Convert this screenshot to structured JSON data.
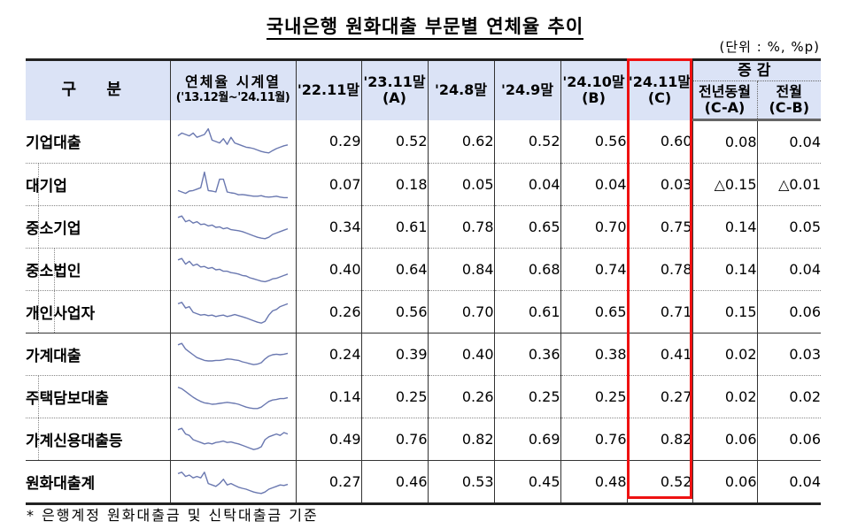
{
  "title": "국내은행 원화대출 부문별 연체율 추이",
  "unit": "(단위 : %, %p)",
  "headers": {
    "category": "구 분",
    "sparkline_main": "연체율 시계열",
    "sparkline_sub": "('13.12월~'24.11월)",
    "columns": [
      {
        "line1": "'22.11말",
        "line2": ""
      },
      {
        "line1": "'23.11말",
        "line2": "(A)"
      },
      {
        "line1": "'24.8말",
        "line2": ""
      },
      {
        "line1": "'24.9말",
        "line2": ""
      },
      {
        "line1": "'24.10말",
        "line2": "(B)"
      },
      {
        "line1": "'24.11말",
        "line2": "(C)"
      }
    ],
    "change_group": "증감",
    "change_cols": [
      {
        "line1": "전년동월",
        "line2": "(C-A)"
      },
      {
        "line1": "전월",
        "line2": "(C-B)"
      }
    ]
  },
  "rows": [
    {
      "label": "기업대출",
      "level": 0,
      "values": [
        "0.29",
        "0.52",
        "0.62",
        "0.52",
        "0.56",
        "0.60"
      ],
      "yoy": "0.08",
      "mom": "0.04"
    },
    {
      "label": "대기업",
      "level": 1,
      "values": [
        "0.07",
        "0.18",
        "0.05",
        "0.04",
        "0.04",
        "0.03"
      ],
      "yoy": "△0.15",
      "mom": "△0.01"
    },
    {
      "label": "중소기업",
      "level": 1,
      "values": [
        "0.34",
        "0.61",
        "0.78",
        "0.65",
        "0.70",
        "0.75"
      ],
      "yoy": "0.14",
      "mom": "0.05"
    },
    {
      "label": "중소법인",
      "level": 2,
      "values": [
        "0.40",
        "0.64",
        "0.84",
        "0.68",
        "0.74",
        "0.78"
      ],
      "yoy": "0.14",
      "mom": "0.04"
    },
    {
      "label": "개인사업자",
      "level": 2,
      "values": [
        "0.26",
        "0.56",
        "0.70",
        "0.61",
        "0.65",
        "0.71"
      ],
      "yoy": "0.15",
      "mom": "0.06"
    },
    {
      "label": "가계대출",
      "level": 0,
      "values": [
        "0.24",
        "0.39",
        "0.40",
        "0.36",
        "0.38",
        "0.41"
      ],
      "yoy": "0.02",
      "mom": "0.03"
    },
    {
      "label": "주택담보대출",
      "level": 1,
      "values": [
        "0.14",
        "0.25",
        "0.26",
        "0.25",
        "0.25",
        "0.27"
      ],
      "yoy": "0.02",
      "mom": "0.02"
    },
    {
      "label": "가계신용대출등",
      "level": 1,
      "values": [
        "0.49",
        "0.76",
        "0.82",
        "0.69",
        "0.76",
        "0.82"
      ],
      "yoy": "0.06",
      "mom": "0.06"
    },
    {
      "label": "원화대출계",
      "level": 0,
      "values": [
        "0.27",
        "0.46",
        "0.53",
        "0.45",
        "0.48",
        "0.52"
      ],
      "yoy": "0.06",
      "mom": "0.04"
    }
  ],
  "highlight_color": "#ee1111",
  "header_bg": "#dbe3f6",
  "sparkline_color": "#6a78b0",
  "footnote": "* 은행계정 원화대출금 및 신탁대출금 기준"
}
